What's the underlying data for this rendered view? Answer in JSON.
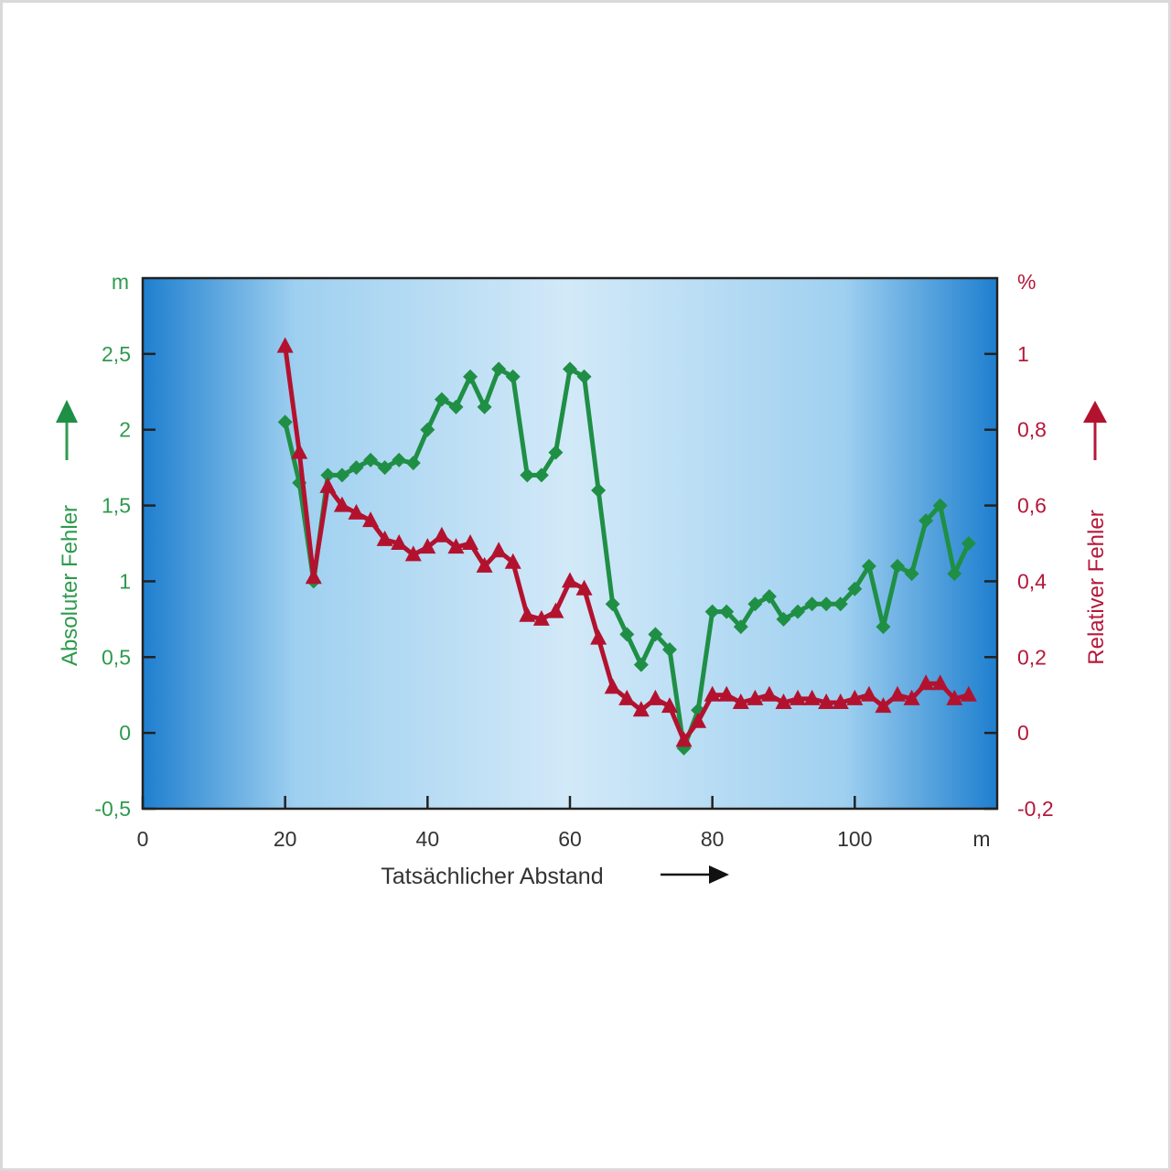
{
  "chart_data": {
    "type": "line",
    "xlabel": "Tatsächlicher Abstand",
    "x_unit": "m",
    "xlim": [
      0,
      120
    ],
    "x_ticks": [
      "0",
      "20",
      "40",
      "60",
      "80",
      "100"
    ],
    "y_left": {
      "label": "Absoluter Fehler",
      "unit": "m",
      "lim": [
        -0.5,
        3.0
      ],
      "ticks": [
        "-0,5",
        "0",
        "0,5",
        "1",
        "1,5",
        "2",
        "2,5"
      ],
      "color": "#1f8f45"
    },
    "y_right": {
      "label": "Relativer Fehler",
      "unit": "%",
      "lim": [
        -0.2,
        1.2
      ],
      "ticks": [
        "-0,2",
        "0",
        "0,2",
        "0,4",
        "0,6",
        "0,8",
        "1"
      ],
      "color": "#b3122f"
    },
    "series": [
      {
        "axis": "left",
        "marker": "diamond",
        "color": "#1f8f45",
        "x": [
          20,
          22,
          24,
          26,
          28,
          30,
          32,
          34,
          36,
          38,
          40,
          42,
          44,
          46,
          48,
          50,
          52,
          54,
          56,
          58,
          60,
          62,
          64,
          66,
          68,
          70,
          72,
          74,
          76,
          78,
          80,
          82,
          84,
          86,
          88,
          90,
          92,
          94,
          96,
          98,
          100,
          102,
          104,
          106,
          108,
          110,
          112,
          114,
          116
        ],
        "y": [
          2.05,
          1.65,
          1.0,
          1.7,
          1.7,
          1.75,
          1.8,
          1.75,
          1.8,
          1.78,
          2.0,
          2.2,
          2.15,
          2.35,
          2.15,
          2.4,
          2.35,
          1.7,
          1.7,
          1.85,
          2.4,
          2.35,
          1.6,
          0.85,
          0.65,
          0.45,
          0.65,
          0.55,
          -0.1,
          0.15,
          0.8,
          0.8,
          0.7,
          0.85,
          0.9,
          0.75,
          0.8,
          0.85,
          0.85,
          0.85,
          0.95,
          1.1,
          0.7,
          1.1,
          1.05,
          1.4,
          1.5,
          1.05,
          1.25
        ]
      },
      {
        "axis": "right",
        "marker": "triangle",
        "color": "#b3122f",
        "x": [
          20,
          22,
          24,
          26,
          28,
          30,
          32,
          34,
          36,
          38,
          40,
          42,
          44,
          46,
          48,
          50,
          52,
          54,
          56,
          58,
          60,
          62,
          64,
          66,
          68,
          70,
          72,
          74,
          76,
          78,
          80,
          82,
          84,
          86,
          88,
          90,
          92,
          94,
          96,
          98,
          100,
          102,
          104,
          106,
          108,
          110,
          112,
          114,
          116
        ],
        "y": [
          1.02,
          0.74,
          0.41,
          0.65,
          0.6,
          0.58,
          0.56,
          0.51,
          0.5,
          0.47,
          0.49,
          0.52,
          0.49,
          0.5,
          0.44,
          0.48,
          0.45,
          0.31,
          0.3,
          0.32,
          0.4,
          0.38,
          0.25,
          0.12,
          0.09,
          0.06,
          0.09,
          0.07,
          -0.02,
          0.03,
          0.1,
          0.1,
          0.08,
          0.09,
          0.1,
          0.08,
          0.09,
          0.09,
          0.08,
          0.08,
          0.09,
          0.1,
          0.07,
          0.1,
          0.09,
          0.13,
          0.13,
          0.09,
          0.1
        ]
      }
    ],
    "grid": false,
    "legend": "none"
  }
}
